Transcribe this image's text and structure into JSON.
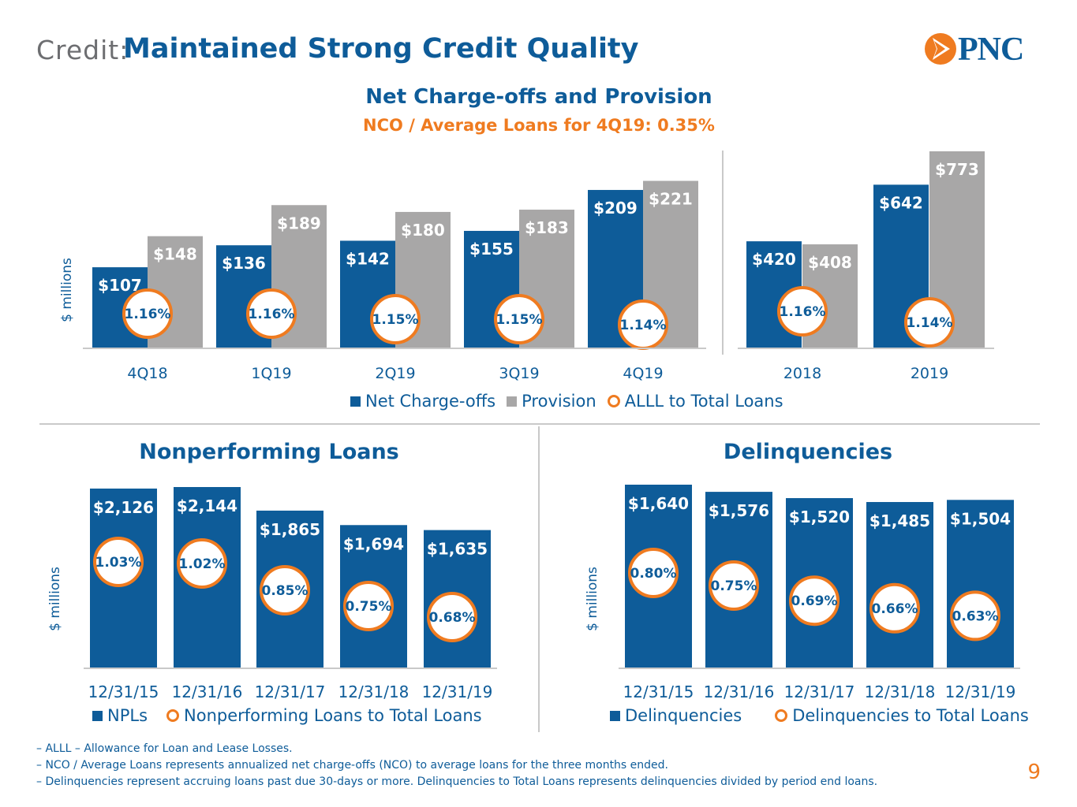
{
  "header": {
    "prefix": "Credit:",
    "title": "Maintained Strong Credit Quality",
    "logo_text": "PNC"
  },
  "colors": {
    "blue": "#0e5c99",
    "gray": "#a8a7a7",
    "orange": "#ef7b20"
  },
  "chart_data": [
    {
      "type": "bar",
      "title": "Net Charge-offs and Provision",
      "subtitle": "NCO / Average Loans for 4Q19: 0.35%",
      "ylabel": "$ millions",
      "grid": false,
      "legend_position": "bottom",
      "groups": [
        {
          "categories": [
            "4Q18",
            "1Q19",
            "2Q19",
            "3Q19",
            "4Q19"
          ],
          "ylim": [
            0,
            260
          ],
          "series": [
            {
              "name": "Net Charge-offs",
              "values": [
                107,
                136,
                142,
                155,
                209
              ],
              "labels": [
                "$107",
                "$136",
                "$142",
                "$155",
                "$209"
              ]
            },
            {
              "name": "Provision",
              "values": [
                148,
                189,
                180,
                183,
                221
              ],
              "labels": [
                "$148",
                "$189",
                "$180",
                "$183",
                "$221"
              ]
            }
          ],
          "ratio": {
            "name": "ALLL to Total Loans",
            "values": [
              1.16,
              1.16,
              1.15,
              1.15,
              1.14
            ],
            "labels": [
              "1.16%",
              "1.16%",
              "1.15%",
              "1.15%",
              "1.14%"
            ]
          }
        },
        {
          "categories": [
            "2018",
            "2019"
          ],
          "ylim": [
            0,
            773
          ],
          "series": [
            {
              "name": "Net Charge-offs",
              "values": [
                420,
                642
              ],
              "labels": [
                "$420",
                "$642"
              ]
            },
            {
              "name": "Provision",
              "values": [
                408,
                773
              ],
              "labels": [
                "$408",
                "$773"
              ]
            }
          ],
          "ratio": {
            "name": "ALLL to Total Loans",
            "values": [
              1.16,
              1.14
            ],
            "labels": [
              "1.16%",
              "1.14%"
            ]
          }
        }
      ],
      "legend": [
        "Net Charge-offs",
        "Provision",
        "ALLL to Total Loans"
      ]
    },
    {
      "type": "bar",
      "title": "Nonperforming Loans",
      "ylabel": "$ millions",
      "grid": false,
      "legend_position": "bottom",
      "categories": [
        "12/31/15",
        "12/31/16",
        "12/31/17",
        "12/31/18",
        "12/31/19"
      ],
      "ylim": [
        0,
        2144
      ],
      "series": [
        {
          "name": "NPLs",
          "values": [
            2126,
            2144,
            1865,
            1694,
            1635
          ],
          "labels": [
            "$2,126",
            "$2,144",
            "$1,865",
            "$1,694",
            "$1,635"
          ]
        }
      ],
      "ratio": {
        "name": "Nonperforming Loans to Total Loans",
        "values": [
          1.03,
          1.02,
          0.85,
          0.75,
          0.68
        ],
        "labels": [
          "1.03%",
          "1.02%",
          "0.85%",
          "0.75%",
          "0.68%"
        ]
      },
      "legend": [
        "NPLs",
        "Nonperforming Loans to Total Loans"
      ]
    },
    {
      "type": "bar",
      "title": "Delinquencies",
      "ylabel": "$ millions",
      "grid": false,
      "legend_position": "bottom",
      "categories": [
        "12/31/15",
        "12/31/16",
        "12/31/17",
        "12/31/18",
        "12/31/19"
      ],
      "ylim": [
        0,
        1640
      ],
      "series": [
        {
          "name": "Delinquencies",
          "values": [
            1640,
            1576,
            1520,
            1485,
            1504
          ],
          "labels": [
            "$1,640",
            "$1,576",
            "$1,520",
            "$1,485",
            "$1,504"
          ]
        }
      ],
      "ratio": {
        "name": "Delinquencies to Total Loans",
        "values": [
          0.8,
          0.75,
          0.69,
          0.66,
          0.63
        ],
        "labels": [
          "0.80%",
          "0.75%",
          "0.69%",
          "0.66%",
          "0.63%"
        ]
      },
      "legend": [
        "Delinquencies",
        "Delinquencies to Total Loans"
      ]
    }
  ],
  "footnotes": [
    "– ALLL – Allowance for Loan and Lease Losses.",
    "– NCO / Average Loans represents annualized net charge-offs (NCO) to average loans for the three months ended.",
    "– Delinquencies represent accruing loans past due 30-days or more. Delinquencies to Total Loans represents delinquencies divided by period end loans."
  ],
  "page_number": "9"
}
